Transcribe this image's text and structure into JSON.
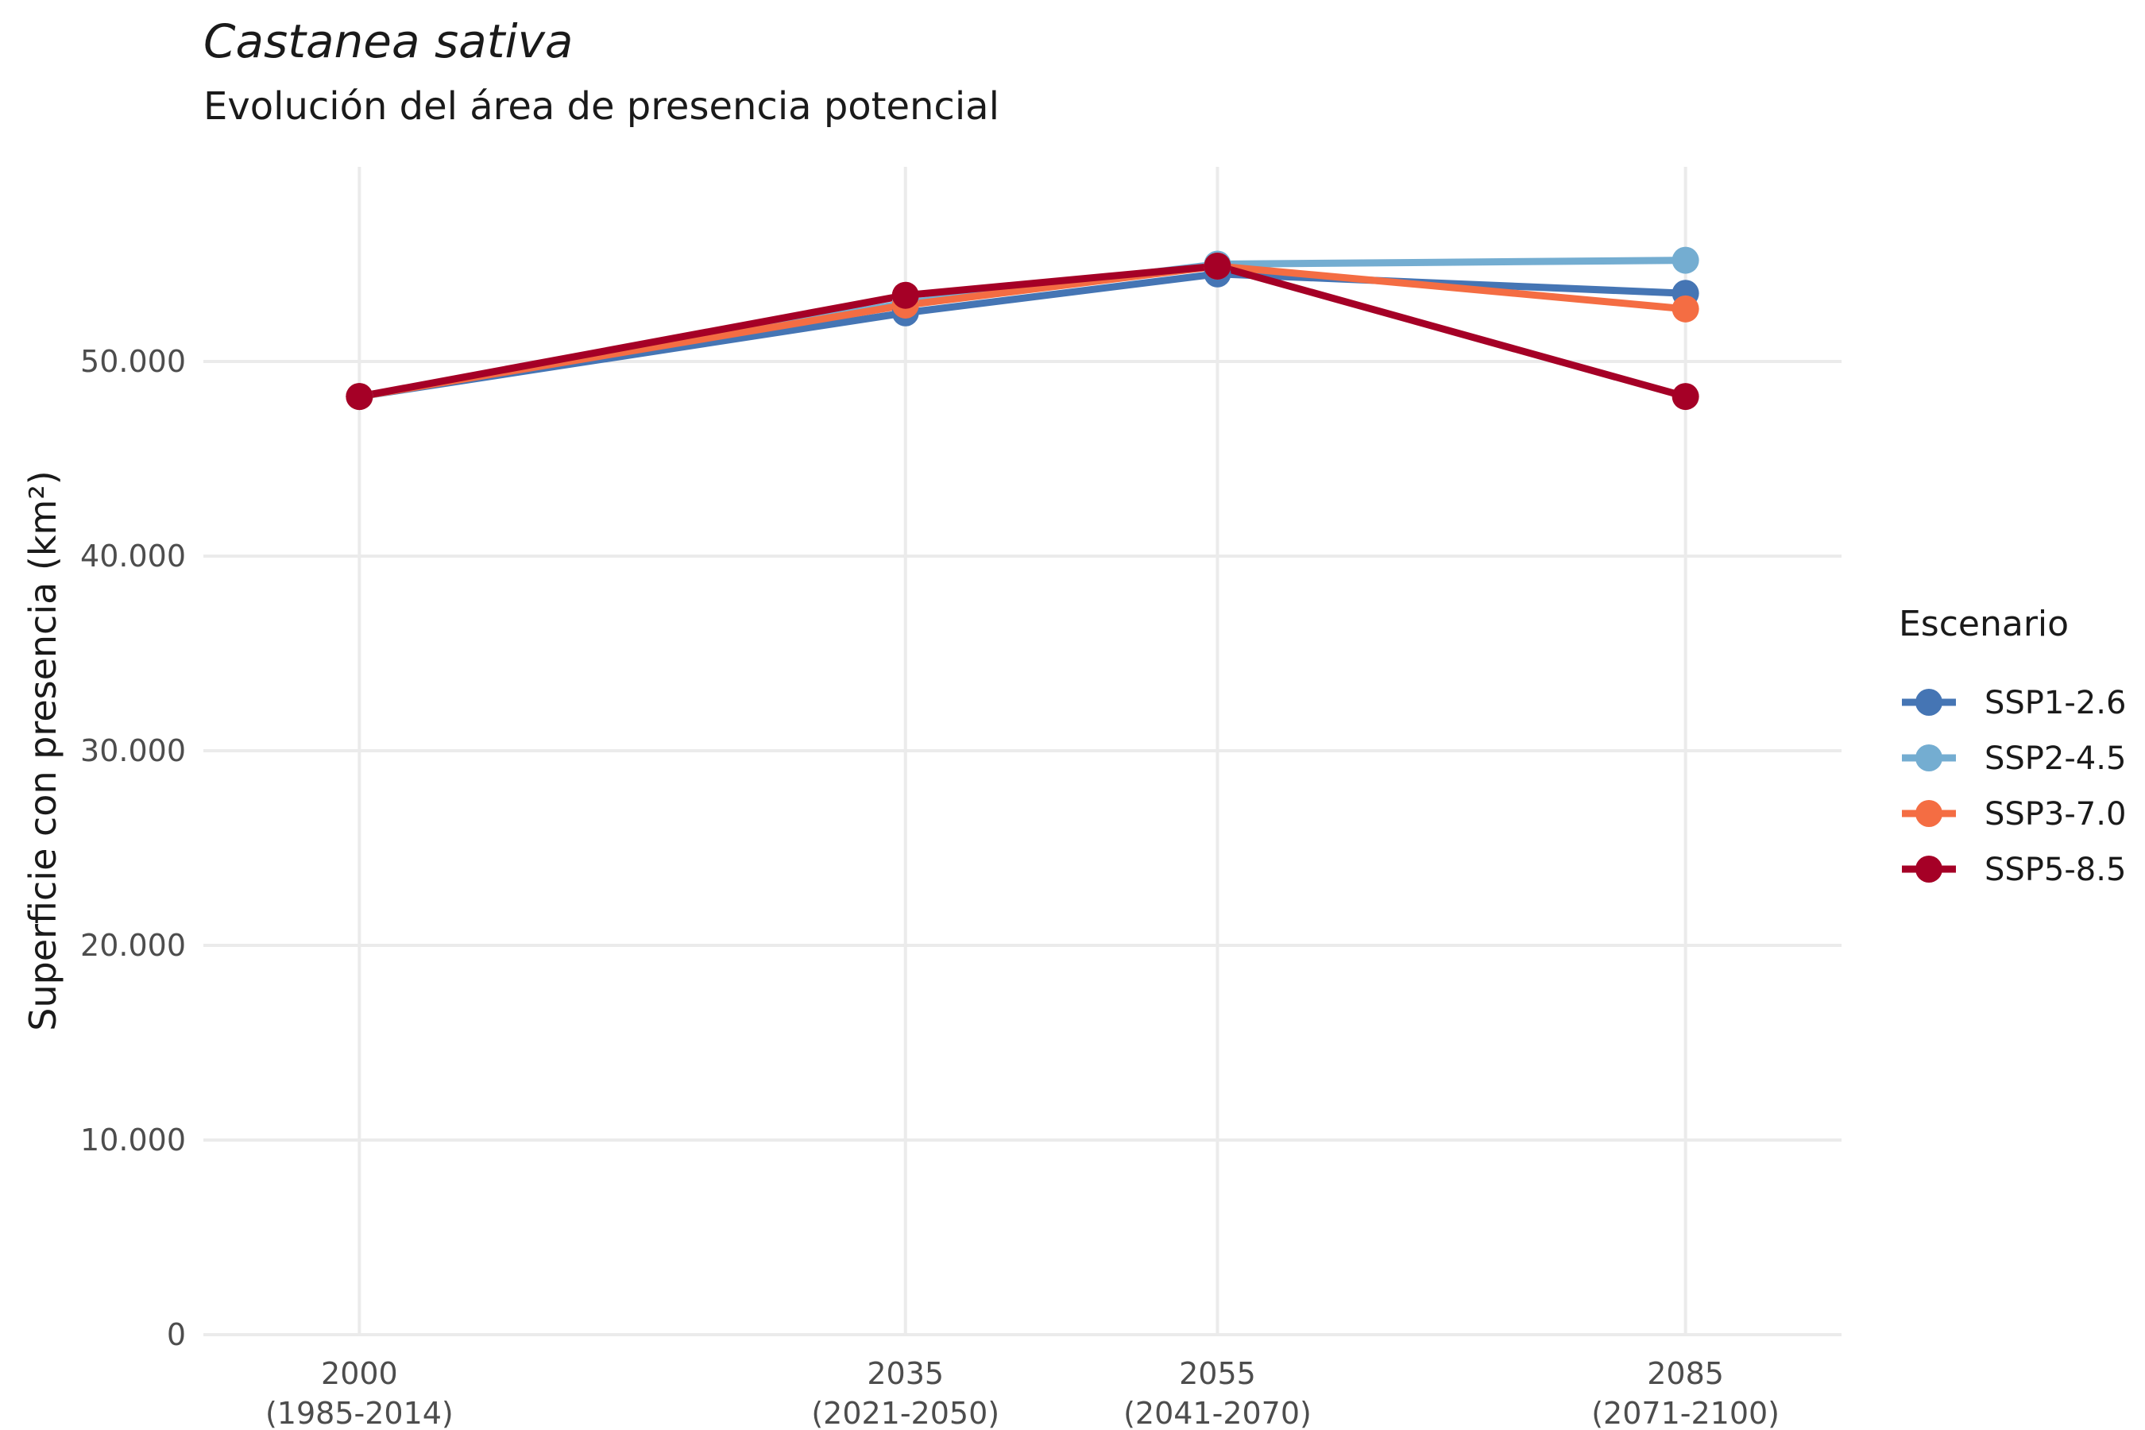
{
  "chart_data": {
    "type": "line",
    "title": "Castanea sativa",
    "subtitle": "Evolución del área de presencia potencial",
    "xlabel": "",
    "ylabel": "Superficie con presencia (km²)",
    "x": [
      2000,
      2035,
      2055,
      2085
    ],
    "x_tick_labels": [
      [
        "2000",
        "(1985-2014)"
      ],
      [
        "2035",
        "(2021-2050)"
      ],
      [
        "2055",
        "(2041-2070)"
      ],
      [
        "2085",
        "(2071-2100)"
      ]
    ],
    "xlim": [
      1990,
      2095
    ],
    "ylim": [
      0,
      60000
    ],
    "y_ticks": [
      0,
      10000,
      20000,
      30000,
      40000,
      50000
    ],
    "y_tick_labels": [
      "0",
      "10.000",
      "20.000",
      "30.000",
      "40.000",
      "50.000"
    ],
    "grid": true,
    "legend": {
      "title": "Escenario",
      "position": "right"
    },
    "series": [
      {
        "name": "SSP1-2.6",
        "color": "#4575b4",
        "values": [
          48200,
          52500,
          54500,
          53500
        ]
      },
      {
        "name": "SSP2-4.5",
        "color": "#74add1",
        "values": [
          48200,
          53000,
          55000,
          55200
        ]
      },
      {
        "name": "SSP3-7.0",
        "color": "#f46d43",
        "values": [
          48200,
          52900,
          54900,
          52700
        ]
      },
      {
        "name": "SSP5-8.5",
        "color": "#a50026",
        "values": [
          48200,
          53400,
          54900,
          48200
        ]
      }
    ]
  }
}
